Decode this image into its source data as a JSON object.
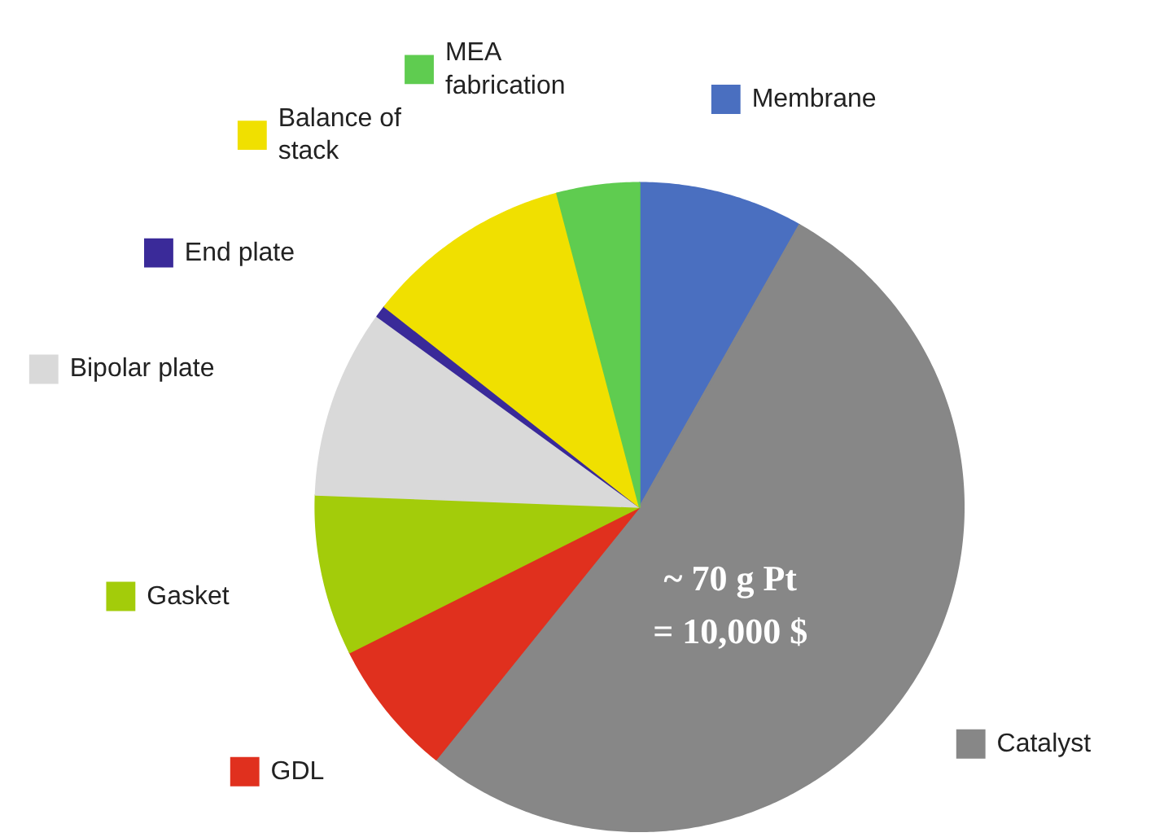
{
  "chart_data": {
    "type": "pie",
    "categories": [
      "Membrane",
      "Catalyst",
      "GDL",
      "Gasket",
      "Bipolar plate",
      "End plate",
      "Balance of\nstack",
      "MEA\nfabrication"
    ],
    "values": [
      8.2,
      52.6,
      6.8,
      8.0,
      9.4,
      0.6,
      10.3,
      4.1
    ],
    "colors": [
      "#4a6fc0",
      "#878787",
      "#e0301e",
      "#a3cc0a",
      "#d9d9d9",
      "#3a2a99",
      "#f0e000",
      "#5fcc50"
    ],
    "legend": "left",
    "annotations": [
      "~ 70 g Pt\n= 10,000 $"
    ]
  }
}
